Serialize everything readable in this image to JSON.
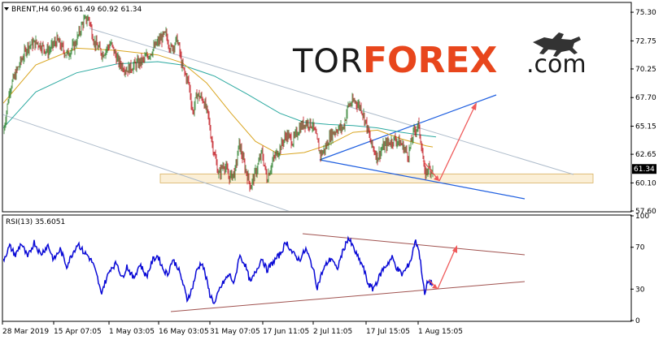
{
  "header": {
    "main": "BRENT,H4  60.96 61.49 60.92 61.34",
    "rsi": "RSI(13) 35.6051"
  },
  "logo": {
    "part1": "TOR",
    "part2": "FOREX",
    "part3": ".com"
  },
  "colors": {
    "bull": "#2a7f2a",
    "bear": "#c0121a",
    "ma_fast": "#d9a520",
    "ma_slow": "#2ba9a0",
    "channel": "#aebccb",
    "triangle": "#1f5fe0",
    "arrow": "#ef5a5a",
    "support_zone": "#fbefd6",
    "rsi_line": "#0a0ad6",
    "rsi_trend": "#a0524f"
  },
  "chart_data": [
    {
      "type": "candlestick",
      "symbol": "BRENT",
      "timeframe": "H4",
      "ylim": [
        57.6,
        76.1
      ],
      "yticks": [
        75.3,
        72.75,
        70.25,
        67.7,
        65.15,
        62.65,
        60.1,
        57.6
      ],
      "ytick_labels": [
        "75.30",
        "72.75",
        "70.25",
        "67.70",
        "65.15",
        "62.65",
        "60.10",
        "57.60"
      ],
      "last_price": 61.34,
      "last_price_label": "61.34",
      "x_labels": [
        "28 Mar 2019",
        "15 Apr 07:05",
        "1 May 03:05",
        "16 May 03:05",
        "31 May 07:05",
        "17 Jun 11:05",
        "2 Jul 11:05",
        "17 Jul 15:05",
        "1 Aug 15:05"
      ],
      "close_path": [
        [
          0,
          64.5
        ],
        [
          8,
          68.5
        ],
        [
          18,
          70.3
        ],
        [
          30,
          72.3
        ],
        [
          42,
          72.6
        ],
        [
          55,
          71.8
        ],
        [
          66,
          72.8
        ],
        [
          78,
          71.5
        ],
        [
          88,
          72.4
        ],
        [
          98,
          74.4
        ],
        [
          105,
          74.8
        ],
        [
          112,
          72.6
        ],
        [
          122,
          71.6
        ],
        [
          132,
          72.5
        ],
        [
          142,
          70.8
        ],
        [
          152,
          70.2
        ],
        [
          162,
          70.6
        ],
        [
          172,
          71.0
        ],
        [
          182,
          71.8
        ],
        [
          192,
          72.8
        ],
        [
          200,
          73.3
        ],
        [
          206,
          72.0
        ],
        [
          214,
          72.9
        ],
        [
          220,
          70.4
        ],
        [
          228,
          69.0
        ],
        [
          233,
          66.3
        ],
        [
          238,
          68.0
        ],
        [
          246,
          67.5
        ],
        [
          252,
          66.0
        ],
        [
          256,
          64.0
        ],
        [
          260,
          62.5
        ],
        [
          265,
          60.8
        ],
        [
          271,
          61.8
        ],
        [
          278,
          60.6
        ],
        [
          285,
          61.1
        ],
        [
          290,
          63.6
        ],
        [
          297,
          61.5
        ],
        [
          304,
          59.8
        ],
        [
          311,
          61.2
        ],
        [
          318,
          62.8
        ],
        [
          324,
          60.5
        ],
        [
          332,
          62.2
        ],
        [
          340,
          63.2
        ],
        [
          348,
          64.4
        ],
        [
          356,
          63.8
        ],
        [
          364,
          65.0
        ],
        [
          372,
          65.5
        ],
        [
          380,
          65.3
        ],
        [
          384,
          64.3
        ],
        [
          390,
          62.6
        ],
        [
          396,
          63.2
        ],
        [
          402,
          64.3
        ],
        [
          410,
          64.9
        ],
        [
          418,
          65.0
        ],
        [
          424,
          67.0
        ],
        [
          432,
          67.4
        ],
        [
          440,
          66.8
        ],
        [
          446,
          65.4
        ],
        [
          452,
          63.6
        ],
        [
          460,
          62.4
        ],
        [
          466,
          63.2
        ],
        [
          474,
          63.7
        ],
        [
          482,
          64.0
        ],
        [
          490,
          63.5
        ],
        [
          498,
          62.6
        ],
        [
          504,
          64.5
        ],
        [
          510,
          65.3
        ],
        [
          514,
          63.6
        ],
        [
          518,
          60.8
        ],
        [
          522,
          61.4
        ],
        [
          528,
          61.3
        ]
      ],
      "ma_fast_path": [
        [
          0,
          67.2
        ],
        [
          40,
          70.6
        ],
        [
          90,
          72.1
        ],
        [
          140,
          71.9
        ],
        [
          190,
          71.5
        ],
        [
          220,
          70.8
        ],
        [
          250,
          69.0
        ],
        [
          280,
          66.3
        ],
        [
          310,
          63.8
        ],
        [
          340,
          62.6
        ],
        [
          370,
          62.8
        ],
        [
          400,
          63.5
        ],
        [
          430,
          64.6
        ],
        [
          460,
          64.8
        ],
        [
          490,
          64.0
        ],
        [
          520,
          63.4
        ],
        [
          528,
          63.3
        ]
      ],
      "ma_slow_path": [
        [
          0,
          65.0
        ],
        [
          40,
          68.2
        ],
        [
          90,
          69.9
        ],
        [
          140,
          70.7
        ],
        [
          190,
          70.9
        ],
        [
          220,
          70.6
        ],
        [
          260,
          69.6
        ],
        [
          300,
          68.0
        ],
        [
          340,
          66.3
        ],
        [
          370,
          65.5
        ],
        [
          400,
          65.3
        ],
        [
          430,
          65.2
        ],
        [
          460,
          65.0
        ],
        [
          490,
          64.6
        ],
        [
          520,
          64.3
        ],
        [
          532,
          64.2
        ]
      ]
    },
    {
      "type": "line",
      "indicator": "RSI(13)",
      "value": 35.6051,
      "ylim": [
        0,
        100
      ],
      "yticks": [
        100,
        70,
        30,
        0
      ],
      "ytick_labels": [
        "100",
        "70",
        "30",
        "0"
      ],
      "line_path": [
        [
          0,
          58
        ],
        [
          8,
          71
        ],
        [
          15,
          62
        ],
        [
          22,
          74
        ],
        [
          30,
          60
        ],
        [
          38,
          75
        ],
        [
          46,
          63
        ],
        [
          55,
          72
        ],
        [
          62,
          58
        ],
        [
          70,
          68
        ],
        [
          78,
          52
        ],
        [
          85,
          64
        ],
        [
          92,
          74
        ],
        [
          98,
          66
        ],
        [
          104,
          62
        ],
        [
          110,
          55
        ],
        [
          116,
          40
        ],
        [
          120,
          26
        ],
        [
          126,
          38
        ],
        [
          132,
          50
        ],
        [
          140,
          55
        ],
        [
          146,
          40
        ],
        [
          152,
          52
        ],
        [
          160,
          40
        ],
        [
          168,
          54
        ],
        [
          176,
          42
        ],
        [
          184,
          58
        ],
        [
          190,
          62
        ],
        [
          196,
          50
        ],
        [
          202,
          44
        ],
        [
          208,
          58
        ],
        [
          214,
          52
        ],
        [
          220,
          38
        ],
        [
          226,
          20
        ],
        [
          232,
          30
        ],
        [
          238,
          48
        ],
        [
          244,
          56
        ],
        [
          248,
          45
        ],
        [
          254,
          25
        ],
        [
          260,
          16
        ],
        [
          266,
          30
        ],
        [
          272,
          38
        ],
        [
          278,
          44
        ],
        [
          284,
          35
        ],
        [
          290,
          62
        ],
        [
          297,
          54
        ],
        [
          304,
          36
        ],
        [
          310,
          46
        ],
        [
          318,
          60
        ],
        [
          324,
          48
        ],
        [
          332,
          56
        ],
        [
          340,
          63
        ],
        [
          348,
          75
        ],
        [
          356,
          64
        ],
        [
          364,
          58
        ],
        [
          372,
          68
        ],
        [
          380,
          52
        ],
        [
          386,
          32
        ],
        [
          392,
          46
        ],
        [
          398,
          55
        ],
        [
          404,
          60
        ],
        [
          410,
          48
        ],
        [
          416,
          63
        ],
        [
          424,
          79
        ],
        [
          430,
          70
        ],
        [
          436,
          60
        ],
        [
          442,
          52
        ],
        [
          448,
          36
        ],
        [
          454,
          30
        ],
        [
          460,
          38
        ],
        [
          466,
          48
        ],
        [
          472,
          54
        ],
        [
          478,
          60
        ],
        [
          484,
          50
        ],
        [
          490,
          44
        ],
        [
          496,
          50
        ],
        [
          502,
          60
        ],
        [
          506,
          76
        ],
        [
          510,
          71
        ],
        [
          514,
          50
        ],
        [
          518,
          24
        ],
        [
          522,
          38
        ],
        [
          528,
          35
        ]
      ]
    }
  ]
}
